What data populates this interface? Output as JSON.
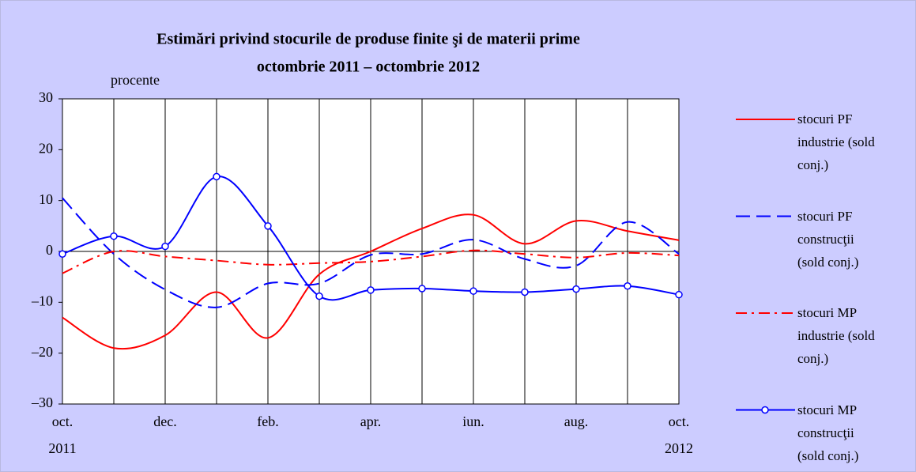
{
  "chart_data": {
    "type": "line",
    "title": "Estimări privind stocurile de produse finite şi de materii prime",
    "subtitle": "octombrie 2011 – octombrie 2012",
    "y_label": "procente",
    "categories": [
      "oct.\n2011",
      null,
      "dec.",
      null,
      "feb.",
      null,
      "apr.",
      null,
      "iun.",
      null,
      "aug.",
      null,
      "oct.\n2012"
    ],
    "ylim": [
      -30,
      30
    ],
    "yticks": [
      {
        "value": -30,
        "label": "–30"
      },
      {
        "value": -20,
        "label": "–20"
      },
      {
        "value": -10,
        "label": "–10"
      },
      0,
      10,
      20,
      30
    ],
    "series": [
      {
        "name": "stocuri PF industrie (sold conj.)",
        "color": "#ff0000",
        "dash": "solid",
        "marker": false,
        "values": [
          -13,
          -19,
          -16.5,
          -8,
          -17,
          -4.5,
          0,
          4.5,
          7.2,
          1.5,
          6,
          4,
          2.2
        ]
      },
      {
        "name": "stocuri PF construcţii (sold conj.)",
        "color": "#0000ff",
        "dash": "dashed",
        "marker": false,
        "values": [
          10.5,
          -0.5,
          -7.5,
          -11,
          -6.3,
          -6.3,
          -0.7,
          -0.5,
          2.3,
          -1.5,
          -2.8,
          5.8,
          -0.5
        ]
      },
      {
        "name": "stocuri MP industrie (sold conj.)",
        "color": "#ff0000",
        "dash": "dashdot",
        "marker": false,
        "values": [
          -4.3,
          0,
          -1,
          -1.8,
          -2.6,
          -2.3,
          -2,
          -1,
          0.2,
          -0.5,
          -1.2,
          -0.3,
          -0.8
        ]
      },
      {
        "name": "stocuri MP construcţii (sold conj.)",
        "color": "#0000ff",
        "dash": "solid",
        "marker": true,
        "values": [
          -0.5,
          3,
          1,
          14.7,
          5,
          -8.8,
          -7.6,
          -7.3,
          -7.8,
          -8,
          -7.4,
          -6.8,
          -8.5
        ]
      }
    ]
  }
}
